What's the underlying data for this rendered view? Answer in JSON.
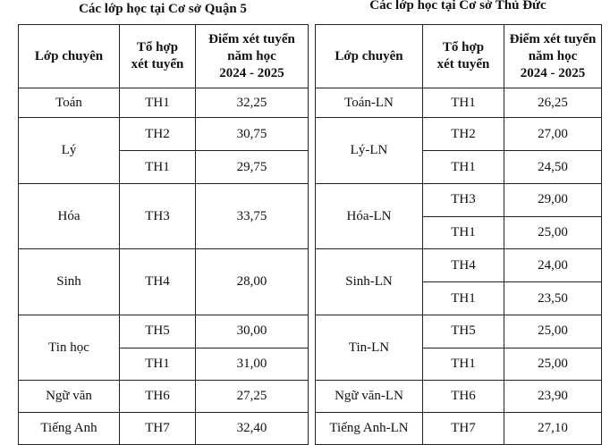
{
  "tables": [
    {
      "title": "Các lớp học tại Cơ sở Quận 5",
      "header": [
        [
          "Lớp chuyên"
        ],
        [
          "Tổ hợp",
          "xét tuyển"
        ],
        [
          "Điểm xét tuyển",
          "năm học",
          "2024 - 2025"
        ]
      ],
      "rows": [
        {
          "class": "Toán",
          "options": [
            {
              "combo": "TH1",
              "score": "32,25"
            }
          ]
        },
        {
          "class": "Lý",
          "options": [
            {
              "combo": "TH2",
              "score": "30,75"
            },
            {
              "combo": "TH1",
              "score": "29,75"
            }
          ]
        },
        {
          "class": "Hóa",
          "options": [
            {
              "combo": "TH3",
              "score": "33,75"
            }
          ]
        },
        {
          "class": "Sinh",
          "options": [
            {
              "combo": "TH4",
              "score": "28,00"
            }
          ]
        },
        {
          "class": "Tin học",
          "options": [
            {
              "combo": "TH5",
              "score": "30,00"
            },
            {
              "combo": "TH1",
              "score": "31,00"
            }
          ]
        },
        {
          "class": "Ngữ văn",
          "options": [
            {
              "combo": "TH6",
              "score": "27,25"
            }
          ]
        },
        {
          "class": "Tiếng Anh",
          "options": [
            {
              "combo": "TH7",
              "score": "32,40"
            }
          ]
        }
      ]
    },
    {
      "title": "Các lớp học tại Cơ sở Thủ Đức",
      "header": [
        [
          "Lớp chuyên"
        ],
        [
          "Tổ hợp",
          "xét tuyển"
        ],
        [
          "Điểm xét tuyển",
          "năm học",
          "2024 - 2025"
        ]
      ],
      "rows": [
        {
          "class": "Toán-LN",
          "options": [
            {
              "combo": "TH1",
              "score": "26,25"
            }
          ]
        },
        {
          "class": "Lý-LN",
          "options": [
            {
              "combo": "TH2",
              "score": "27,00"
            },
            {
              "combo": "TH1",
              "score": "24,50"
            }
          ]
        },
        {
          "class": "Hóa-LN",
          "options": [
            {
              "combo": "TH3",
              "score": "29,00"
            },
            {
              "combo": "TH1",
              "score": "25,00"
            }
          ]
        },
        {
          "class": "Sinh-LN",
          "options": [
            {
              "combo": "TH4",
              "score": "24,00"
            },
            {
              "combo": "TH1",
              "score": "23,50"
            }
          ]
        },
        {
          "class": "Tin-LN",
          "options": [
            {
              "combo": "TH5",
              "score": "25,00"
            },
            {
              "combo": "TH1",
              "score": "25,00"
            }
          ]
        },
        {
          "class": "Ngữ văn-LN",
          "options": [
            {
              "combo": "TH6",
              "score": "23,90"
            }
          ]
        },
        {
          "class": "Tiếng Anh-LN",
          "options": [
            {
              "combo": "TH7",
              "score": "27,10"
            }
          ]
        }
      ]
    }
  ]
}
